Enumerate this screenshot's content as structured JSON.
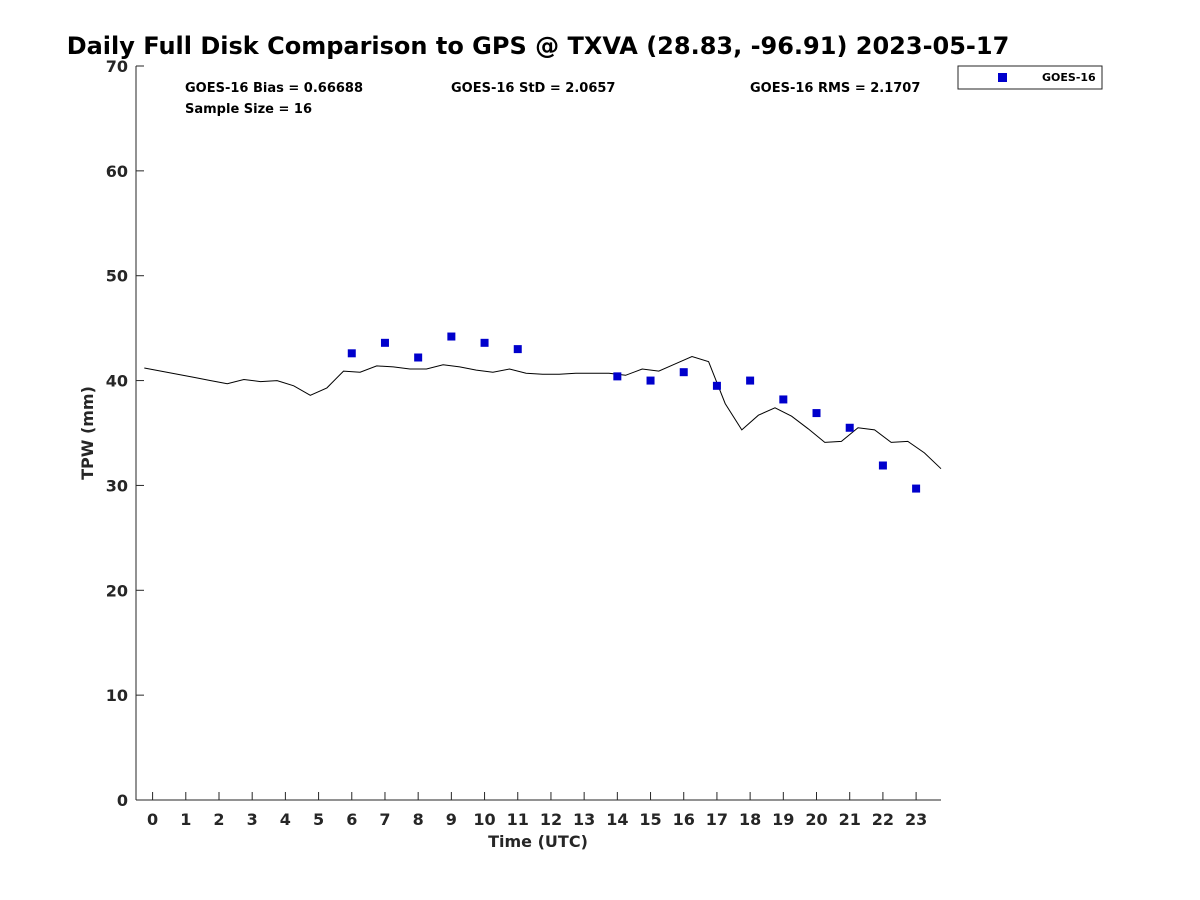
{
  "chart_data": {
    "type": "scatter",
    "title": "Daily Full Disk Comparison to GPS @ TXVA (28.83, -96.91) 2023-05-17",
    "xlabel": "Time (UTC)",
    "ylabel": "TPW (mm)",
    "xlim": [
      -0.5,
      23.75
    ],
    "ylim": [
      0,
      70
    ],
    "x_ticks": [
      "0",
      "1",
      "2",
      "3",
      "4",
      "5",
      "6",
      "7",
      "8",
      "9",
      "10",
      "11",
      "12",
      "13",
      "14",
      "15",
      "16",
      "17",
      "18",
      "19",
      "20",
      "21",
      "22",
      "23"
    ],
    "y_ticks": [
      "0",
      "10",
      "20",
      "30",
      "40",
      "50",
      "60",
      "70"
    ],
    "grid": false,
    "legend": {
      "position": "top-right",
      "entries": [
        "GOES-16"
      ]
    },
    "stats": {
      "bias": "GOES-16 Bias = 0.66688",
      "std": "GOES-16 StD = 2.0657",
      "rms": "GOES-16 RMS = 2.1707",
      "sample": "Sample Size = 16"
    },
    "series": [
      {
        "name": "GOES-16",
        "kind": "scatter",
        "color": "#0000cc",
        "x": [
          6,
          7,
          8,
          9,
          10,
          11,
          14,
          15,
          16,
          17,
          18,
          19,
          20,
          21,
          22,
          23
        ],
        "y": [
          42.6,
          43.6,
          42.2,
          44.2,
          43.6,
          43.0,
          40.4,
          40.0,
          40.8,
          39.5,
          40.0,
          38.2,
          36.9,
          35.5,
          31.9,
          29.7
        ]
      },
      {
        "kind": "line",
        "color": "#000000",
        "x": [
          -0.25,
          0.25,
          0.75,
          1.25,
          1.75,
          2.25,
          2.75,
          3.25,
          3.75,
          4.25,
          4.75,
          5.25,
          5.75,
          6.25,
          6.75,
          7.25,
          7.75,
          8.25,
          8.75,
          9.25,
          9.75,
          10.25,
          10.75,
          11.25,
          11.75,
          12.25,
          12.75,
          13.25,
          13.75,
          14.25,
          14.75,
          15.25,
          15.75,
          16.25,
          16.75,
          17.25,
          17.75,
          18.25,
          18.75,
          19.25,
          19.75,
          20.25,
          20.75,
          21.25,
          21.75,
          22.25,
          22.75,
          23.25,
          23.75
        ],
        "y": [
          41.2,
          40.9,
          40.6,
          40.3,
          40.0,
          39.7,
          40.1,
          39.9,
          40.0,
          39.5,
          38.6,
          39.3,
          40.9,
          40.8,
          41.4,
          41.3,
          41.1,
          41.1,
          41.5,
          41.3,
          41.0,
          40.8,
          41.1,
          40.7,
          40.6,
          40.6,
          40.7,
          40.7,
          40.7,
          40.5,
          41.1,
          40.9,
          41.6,
          42.3,
          41.8,
          37.8,
          35.3,
          36.7,
          37.4,
          36.6,
          35.4,
          34.1,
          34.2,
          35.5,
          35.3,
          34.1,
          34.2,
          33.1,
          31.6
        ]
      }
    ]
  }
}
